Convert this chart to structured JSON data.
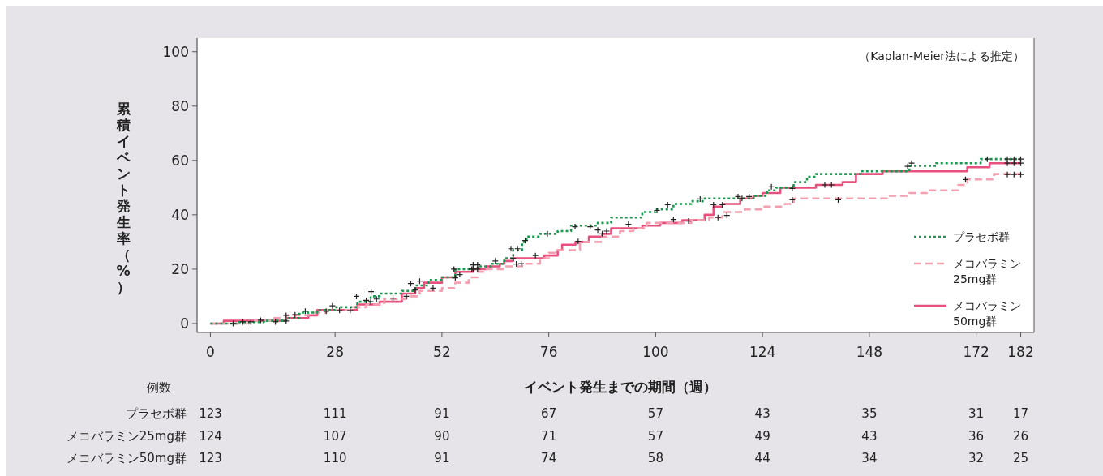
{
  "chart_data": {
    "type": "step",
    "xlabel": "イベント発生までの期間（週）",
    "ylabel": "累積イベント発生率（%）",
    "xlim": [
      -3,
      185
    ],
    "ylim": [
      -3.3,
      105
    ],
    "xticks": [
      0,
      28,
      52,
      76,
      100,
      124,
      148,
      172,
      182
    ],
    "yticks": [
      0,
      20,
      40,
      60,
      80,
      100
    ],
    "legend": "right",
    "annotations": [
      "（Kaplan-Meier法による推定）",
      "例数",
      "プラセボ群",
      "123",
      "111",
      "91",
      "67",
      "57",
      "43",
      "35",
      "31",
      "17",
      "メコバラミン25mg群",
      "124",
      "107",
      "90",
      "71",
      "57",
      "49",
      "43",
      "36",
      "26",
      "メコバラミン50mg群",
      "123",
      "110",
      "91",
      "74",
      "58",
      "44",
      "34",
      "32",
      "25"
    ],
    "series": [
      {
        "name": "プラセボ群",
        "color": "#1a9a50",
        "line_style": "dotted",
        "x": [
          0,
          6,
          12,
          17,
          20,
          24,
          28,
          33,
          36,
          38,
          43,
          46,
          49,
          52,
          55,
          60,
          63,
          66,
          68,
          70,
          71,
          74,
          78,
          81,
          87,
          90,
          97,
          100,
          104,
          108,
          111,
          122,
          125,
          127,
          131,
          134,
          136,
          146,
          157,
          163,
          173,
          182
        ],
        "values": [
          0,
          0.5,
          1,
          2,
          4,
          5,
          6,
          8,
          10,
          11,
          12,
          14,
          16,
          17,
          20,
          21,
          22,
          24,
          27,
          30,
          32,
          33,
          34,
          36,
          37,
          39,
          41,
          42,
          44,
          45,
          46,
          47,
          49,
          50,
          52,
          54,
          55,
          56,
          58,
          59,
          60.5,
          60.5
        ]
      },
      {
        "name": "メコバラミン25mg群",
        "color": "#f4a0b0",
        "line_style": "dashed",
        "x": [
          0,
          10,
          14,
          17,
          22,
          26,
          32,
          35,
          39,
          44,
          47,
          52,
          55,
          58,
          60,
          62,
          66,
          70,
          74,
          76,
          78,
          83,
          88,
          92,
          95,
          98,
          108,
          112,
          115,
          120,
          124,
          129,
          131,
          152,
          157,
          161,
          168,
          170,
          176,
          182
        ],
        "values": [
          0,
          1,
          2,
          3,
          4,
          5,
          6,
          7,
          9,
          10,
          12,
          13,
          15,
          17,
          19,
          20,
          21,
          22,
          24,
          26,
          27,
          30,
          32,
          34,
          35,
          37,
          38,
          39,
          41,
          42,
          43,
          44,
          46,
          47,
          48,
          49,
          51,
          53,
          55,
          55
        ]
      },
      {
        "name": "メコバラミン50mg群",
        "color": "#e8507e",
        "line_style": "solid",
        "x": [
          0,
          3,
          16,
          17,
          22,
          24,
          32,
          33,
          38,
          43,
          46,
          48,
          52,
          55,
          59,
          62,
          65,
          66,
          68,
          75,
          78,
          79,
          82,
          85,
          88,
          90,
          97,
          101,
          106,
          111,
          113,
          115,
          119,
          122,
          124,
          128,
          136,
          142,
          145,
          151,
          170,
          175,
          182
        ],
        "values": [
          0,
          1,
          1,
          2,
          3,
          5,
          5,
          7,
          8,
          11,
          13,
          15,
          17,
          19,
          20,
          21,
          22,
          23,
          24,
          25,
          27,
          29,
          30,
          32,
          33,
          35,
          36,
          37,
          38,
          40,
          43,
          44,
          46,
          47,
          48,
          50,
          51,
          52,
          55,
          56,
          57.5,
          59,
          59
        ]
      },
      {
        "type": "scatter",
        "marker": "cross",
        "color": "#222222",
        "x": [
          5.1,
          7.3,
          9.1,
          11.3,
          14.6,
          17,
          17,
          19,
          21.3,
          26,
          29,
          31.4,
          27.4,
          32.8,
          35,
          36,
          36.1,
          37.3,
          41,
          44,
          46,
          50,
          45,
          47,
          55,
          56,
          54.7,
          59,
          60,
          59,
          60,
          58.7,
          64,
          68.7,
          69.8,
          68,
          73,
          67.5,
          69,
          70.7,
          75.7,
          82.6,
          87,
          88,
          89,
          93.9,
          81.9,
          85.3,
          100.3,
          102.7,
          104,
          107.4,
          110,
          113,
          115,
          114,
          116,
          118.5,
          121,
          119.4,
          126,
          130.7,
          130.7,
          138,
          139.5,
          141,
          156.6,
          157.5,
          169.6,
          174.5,
          179,
          180.5,
          182,
          179,
          180.5,
          182,
          179,
          180.5,
          182
        ],
        "values": [
          0,
          0.6,
          0.6,
          1.2,
          0.6,
          3,
          0.9,
          3.2,
          4.5,
          4.5,
          4.8,
          4.8,
          6.5,
          10,
          8.5,
          8,
          11.7,
          9,
          9.3,
          10,
          12.3,
          13,
          14.7,
          15.6,
          16.8,
          18,
          20,
          20,
          20,
          21.6,
          21.6,
          20,
          23,
          21.9,
          22,
          24,
          25,
          27.5,
          27.5,
          30.5,
          33,
          30.2,
          34.4,
          33,
          34,
          36.5,
          35.6,
          35.6,
          41.6,
          43.7,
          38.3,
          37.7,
          45.8,
          43.7,
          43.7,
          39,
          39.8,
          46.7,
          46.7,
          46,
          50.3,
          49.7,
          45.5,
          51,
          51,
          45.5,
          57.8,
          59,
          53,
          60.5,
          60.5,
          60.5,
          60.5,
          59,
          59,
          59,
          54.8,
          54.8,
          54.8
        ]
      }
    ]
  }
}
